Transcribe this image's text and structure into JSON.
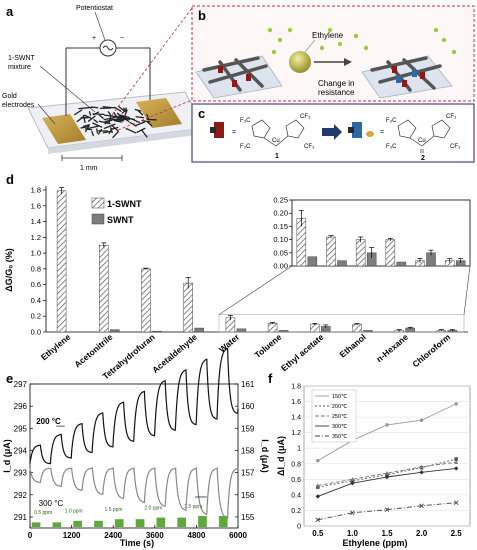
{
  "panel_labels": {
    "a": "a",
    "b": "b",
    "c": "c",
    "d": "d",
    "e": "e",
    "f": "f"
  },
  "panel_a": {
    "potentiostat": "Potentiostat",
    "mixture": "1-SWNT\nmixture",
    "mixture_l1": "1-SWNT",
    "mixture_l2": "mixture",
    "electrodes_l1": "Gold",
    "electrodes_l2": "electrodes",
    "scale": "1 mm"
  },
  "panel_b": {
    "ethylene": "Ethylene",
    "change_l1": "Change in",
    "change_l2": "resistance"
  },
  "panel_c": {
    "compound1": "1",
    "compound2": "2",
    "eq": "=",
    "cu": "Cu",
    "cf3": "CF₃",
    "f3c": "F₃C"
  },
  "chart_data": [
    {
      "id": "d",
      "type": "bar",
      "ylabel": "ΔG/G₀ (%)",
      "ylim": [
        0,
        1.8
      ],
      "yticks": [
        "0.0",
        "0.2",
        "0.4",
        "0.6",
        "0.8",
        "1.0",
        "1.2",
        "1.4",
        "1.6",
        "1.8"
      ],
      "categories": [
        "Ethylene",
        "Acetonitrile",
        "Tetrahydrofuran",
        "Acetaldehyde",
        "Water",
        "Toluene",
        "Ethyl acetate",
        "Ethanol",
        "n-Hexane",
        "Chloroform"
      ],
      "series": [
        {
          "name": "1-SWNT",
          "values": [
            1.79,
            1.1,
            0.8,
            0.62,
            0.18,
            0.11,
            0.1,
            0.1,
            0.02,
            0.02
          ],
          "errors": [
            0.04,
            0.03,
            0.01,
            0.07,
            0.03,
            0.01,
            0.01,
            0.01,
            0.01,
            0.01
          ]
        },
        {
          "name": "SWNT",
          "values": [
            0.0,
            0.03,
            0.01,
            0.05,
            0.04,
            0.02,
            0.07,
            0.02,
            0.05,
            0.02
          ],
          "errors": [
            0.0,
            0.0,
            0.0,
            0.0,
            0.0,
            0.0,
            0.02,
            0.0,
            0.01,
            0.01
          ]
        }
      ],
      "inset": {
        "ylim": [
          0,
          0.25
        ],
        "yticks": [
          "0.00",
          "0.05",
          "0.10",
          "0.15",
          "0.20",
          "0.25"
        ],
        "categories_from_index": 4,
        "s1_values": [
          0.18,
          0.11,
          0.1,
          0.1,
          0.02,
          0.02
        ],
        "s1_errors": [
          0.03,
          0.005,
          0.01,
          0.005,
          0.008,
          0.008
        ],
        "s2_values": [
          0.035,
          0.02,
          0.05,
          0.015,
          0.05,
          0.02
        ],
        "s2_errors": [
          0.0,
          0.0,
          0.02,
          0.0,
          0.01,
          0.008
        ]
      },
      "legend": "top-left"
    },
    {
      "id": "e",
      "type": "line",
      "xlabel": "Time (s)",
      "ylabel_left": "I_d (μA)",
      "ylabel_right": "I_d (μA)",
      "xlim": [
        0,
        6000
      ],
      "xticks": [
        "0",
        "1200",
        "2400",
        "3600",
        "4800",
        "6000"
      ],
      "ylim_left": [
        290.5,
        297
      ],
      "yticks_left": [
        "291",
        "292",
        "293",
        "294",
        "295",
        "296",
        "297"
      ],
      "ylim_right": [
        154.5,
        161
      ],
      "yticks_right": [
        "155",
        "156",
        "157",
        "158",
        "159",
        "160",
        "161"
      ],
      "annotations": [
        "200 °C",
        "300 °C"
      ],
      "pulse_labels": [
        "0.5 ppm",
        "1.0 ppm",
        "1.5 ppm",
        "2.0 ppm",
        "2.5 ppm"
      ],
      "pulse_starts": [
        0,
        600,
        1200,
        1800,
        2400,
        3000,
        3600,
        4200,
        4800,
        5400
      ]
    },
    {
      "id": "f",
      "type": "line",
      "xlabel": "Ethylene (ppm)",
      "ylabel": "ΔI_d (μA)",
      "xlim": [
        0.3,
        2.7
      ],
      "xticks": [
        "0.5",
        "1.0",
        "1.5",
        "2.0",
        "2.5"
      ],
      "ylim": [
        0,
        1.8
      ],
      "yticks": [
        "0",
        "0.2",
        "0.4",
        "0.6",
        "0.8",
        "1",
        "1.2",
        "1.4",
        "1.6",
        "1.8"
      ],
      "x": [
        0.5,
        1.0,
        1.5,
        2.0,
        2.5
      ],
      "series": [
        {
          "name": "150℃",
          "values": [
            0.84,
            1.1,
            1.3,
            1.36,
            1.57
          ]
        },
        {
          "name": "200℃",
          "values": [
            0.5,
            0.58,
            0.66,
            0.75,
            0.86
          ]
        },
        {
          "name": "250℃",
          "values": [
            0.52,
            0.6,
            0.68,
            0.76,
            0.82
          ]
        },
        {
          "name": "300℃",
          "values": [
            0.38,
            0.55,
            0.63,
            0.69,
            0.74
          ]
        },
        {
          "name": "350℃",
          "values": [
            0.08,
            0.17,
            0.21,
            0.26,
            0.3
          ]
        }
      ],
      "legend": "top-left"
    }
  ]
}
